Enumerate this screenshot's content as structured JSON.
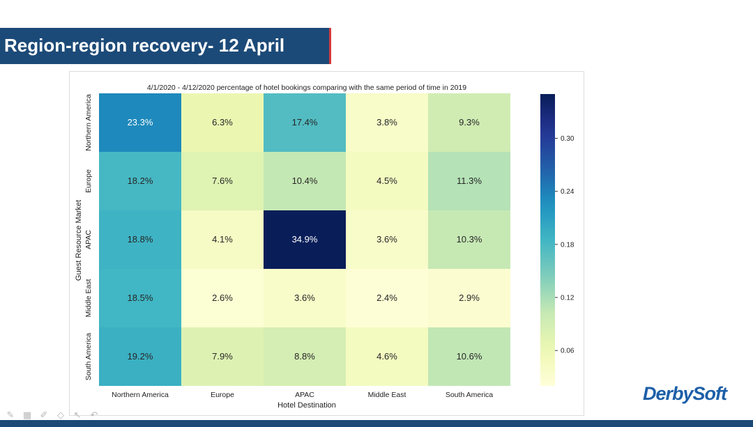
{
  "slide": {
    "title": "Region-region recovery- 12 April",
    "logo": "DerbySoft"
  },
  "toolbar": {
    "icons": [
      "pen-icon",
      "grid-icon",
      "marker-icon",
      "eraser-icon",
      "pointer-icon",
      "undo-icon"
    ]
  },
  "chart_data": {
    "type": "heatmap",
    "title": "4/1/2020 - 4/12/2020 percentage of hotel bookings comparing with the same period of time in 2019",
    "xlabel": "Hotel Destination",
    "ylabel": "Guest Resource Market",
    "x_categories": [
      "Northern America",
      "Europe",
      "APAC",
      "Middle East",
      "South America"
    ],
    "y_categories": [
      "Northern America",
      "Europe",
      "APAC",
      "Middle East",
      "South America"
    ],
    "values": [
      [
        0.233,
        0.063,
        0.174,
        0.038,
        0.093
      ],
      [
        0.182,
        0.076,
        0.104,
        0.045,
        0.113
      ],
      [
        0.188,
        0.041,
        0.349,
        0.036,
        0.103
      ],
      [
        0.185,
        0.026,
        0.036,
        0.024,
        0.029
      ],
      [
        0.192,
        0.079,
        0.088,
        0.046,
        0.106
      ]
    ],
    "cell_labels": [
      [
        "23.3%",
        "6.3%",
        "17.4%",
        "3.8%",
        "9.3%"
      ],
      [
        "18.2%",
        "7.6%",
        "10.4%",
        "4.5%",
        "11.3%"
      ],
      [
        "18.8%",
        "4.1%",
        "34.9%",
        "3.6%",
        "10.3%"
      ],
      [
        "18.5%",
        "2.6%",
        "3.6%",
        "2.4%",
        "2.9%"
      ],
      [
        "19.2%",
        "7.9%",
        "8.8%",
        "4.6%",
        "10.6%"
      ]
    ],
    "colorbar": {
      "range": [
        0.02,
        0.35
      ],
      "ticks": [
        0.06,
        0.12,
        0.18,
        0.24,
        0.3
      ],
      "tick_labels": [
        "0.06",
        "0.12",
        "0.18",
        "0.24",
        "0.30"
      ],
      "colormap": "YlGnBu"
    },
    "grid": false,
    "legend": "colorbar-right"
  }
}
